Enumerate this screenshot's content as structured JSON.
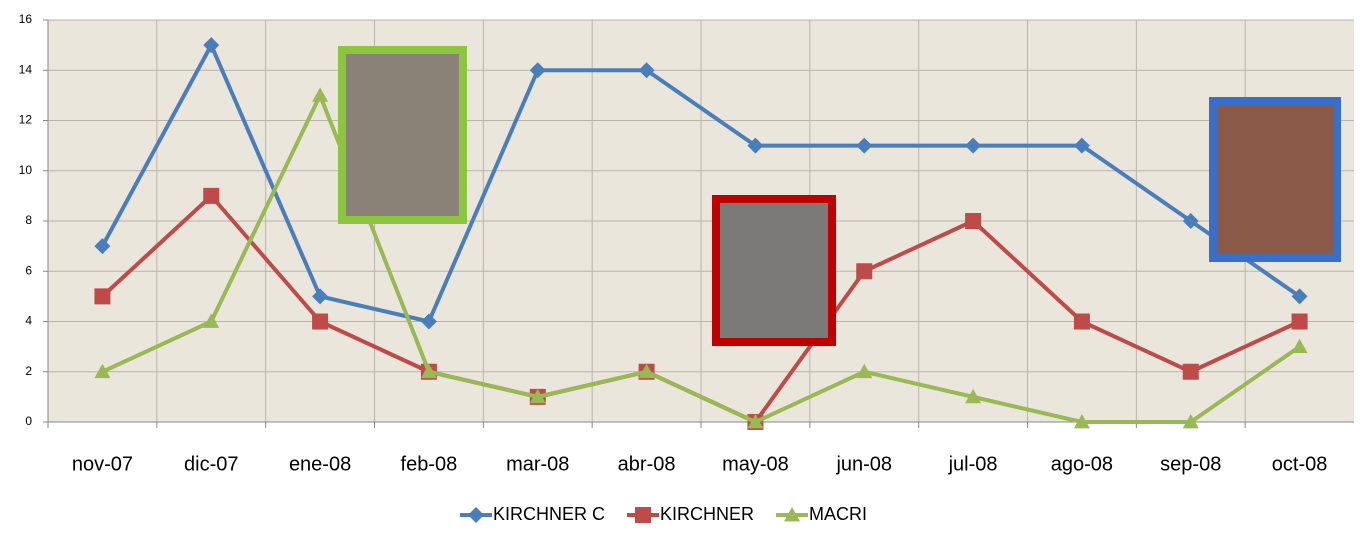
{
  "chart_data": {
    "type": "line",
    "categories": [
      "nov-07",
      "dic-07",
      "ene-08",
      "feb-08",
      "mar-08",
      "abr-08",
      "may-08",
      "jun-08",
      "jul-08",
      "ago-08",
      "sep-08",
      "oct-08"
    ],
    "series": [
      {
        "name": "KIRCHNER C",
        "color": "#4a7ebb",
        "marker": "diamond",
        "values": [
          7,
          15,
          5,
          4,
          14,
          14,
          11,
          11,
          11,
          11,
          8,
          5
        ]
      },
      {
        "name": "KIRCHNER",
        "color": "#be4b48",
        "marker": "square",
        "values": [
          5,
          9,
          4,
          2,
          1,
          2,
          0,
          6,
          8,
          4,
          2,
          4
        ]
      },
      {
        "name": "MACRI",
        "color": "#98b954",
        "marker": "triangle",
        "values": [
          2,
          4,
          13,
          2,
          1,
          2,
          0,
          2,
          1,
          0,
          0,
          3
        ]
      }
    ],
    "ylim": [
      0,
      16
    ],
    "yticks": [
      0,
      2,
      4,
      6,
      8,
      10,
      12,
      14,
      16
    ],
    "grid": true,
    "legend": "bottom"
  }
}
